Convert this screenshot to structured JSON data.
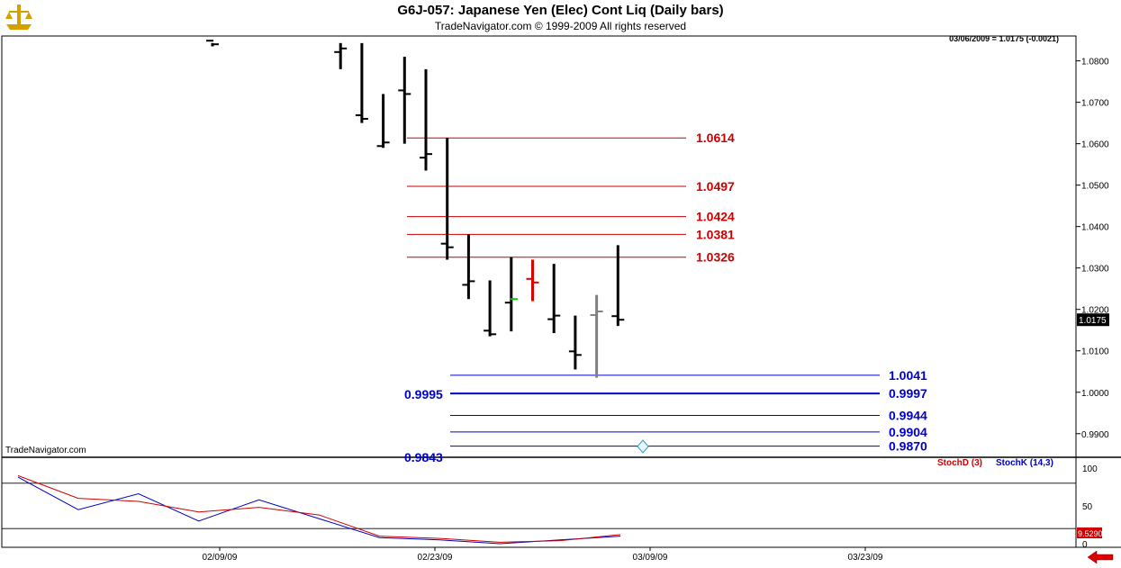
{
  "title": "G6J-057:  Japanese Yen (Elec) Cont Liq  (Daily bars)",
  "subtitle": "TradeNavigator.com © 1999-2009 All rights reserved",
  "quote": "03/06/2009 = 1.0175 (-0.0021)",
  "watermark": "TradeNavigator.com",
  "colors": {
    "bar": "#000000",
    "resistance": "#cc0000",
    "support": "#0000cc",
    "stochD": "#d00000",
    "stochK": "#0000c0",
    "last_up": "#00cc00",
    "down_day": "#dd0000",
    "gray_bar": "#808080"
  },
  "chart_data": {
    "type": "ohlc",
    "price_axis": {
      "ylim": [
        0.9843,
        1.086
      ],
      "ticks": [
        "1.0800",
        "1.0700",
        "1.0600",
        "1.0500",
        "1.0400",
        "1.0300",
        "1.0200",
        "1.0100",
        "1.0000",
        "0.9900"
      ],
      "tick_values": [
        1.08,
        1.07,
        1.06,
        1.05,
        1.04,
        1.03,
        1.02,
        1.01,
        1.0,
        0.99
      ]
    },
    "last_price": "1.0175",
    "x_ticks": [
      "02/09/09",
      "02/23/09",
      "03/09/09",
      "03/23/09"
    ],
    "bars": [
      {
        "day": 0,
        "high": 1.0843,
        "low": 1.0835,
        "close": 1.084
      },
      {
        "day": 6,
        "high": 1.0843,
        "low": 1.078,
        "close": 1.083
      },
      {
        "day": 7,
        "high": 1.0843,
        "low": 1.065,
        "close": 1.066
      },
      {
        "day": 8,
        "high": 1.072,
        "low": 1.059,
        "close": 1.0603
      },
      {
        "day": 9,
        "high": 1.081,
        "low": 1.06,
        "close": 1.072
      },
      {
        "day": 10,
        "high": 1.078,
        "low": 1.0535,
        "close": 1.0575
      },
      {
        "day": 11,
        "high": 1.0614,
        "low": 1.032,
        "close": 1.035
      },
      {
        "day": 12,
        "high": 1.0381,
        "low": 1.0225,
        "close": 1.0268
      },
      {
        "day": 13,
        "high": 1.027,
        "low": 1.0135,
        "close": 1.014
      },
      {
        "day": 14,
        "high": 1.0326,
        "low": 1.0147,
        "close": 1.0225
      },
      {
        "day": 15,
        "high": 1.032,
        "low": 1.022,
        "close": 1.0265
      },
      {
        "day": 16,
        "high": 1.031,
        "low": 1.0143,
        "close": 1.0185
      },
      {
        "day": 17,
        "high": 1.0185,
        "low": 1.0055,
        "close": 1.009
      },
      {
        "day": 18,
        "high": 1.0235,
        "low": 1.0035,
        "close": 1.0195
      },
      {
        "day": 19,
        "high": 1.0355,
        "low": 1.016,
        "close": 1.0175
      }
    ],
    "resistance_levels": [
      "1.0614",
      "1.0497",
      "1.0424",
      "1.0381",
      "1.0326"
    ],
    "support_levels": [
      "1.0041",
      "0.9997",
      "0.9944",
      "0.9904",
      "0.9870"
    ],
    "support_left_labels": [
      "0.9995",
      "0.9843"
    ],
    "stochastic": {
      "labels": [
        "StochD (3)",
        "StochK (14,3)"
      ],
      "axis_ticks": [
        "100",
        "50",
        "0"
      ],
      "last_value": "9.5290",
      "k": [
        [
          0,
          88
        ],
        [
          3,
          45
        ],
        [
          6,
          66
        ],
        [
          9,
          30
        ],
        [
          12,
          58
        ],
        [
          15,
          33
        ],
        [
          18,
          8
        ],
        [
          21,
          5
        ],
        [
          24,
          0
        ],
        [
          27,
          5
        ],
        [
          30,
          10
        ]
      ],
      "d": [
        [
          0,
          90
        ],
        [
          3,
          60
        ],
        [
          6,
          56
        ],
        [
          9,
          42
        ],
        [
          12,
          48
        ],
        [
          15,
          38
        ],
        [
          18,
          10
        ],
        [
          21,
          7
        ],
        [
          24,
          2
        ],
        [
          27,
          4
        ],
        [
          30,
          12
        ]
      ]
    }
  }
}
